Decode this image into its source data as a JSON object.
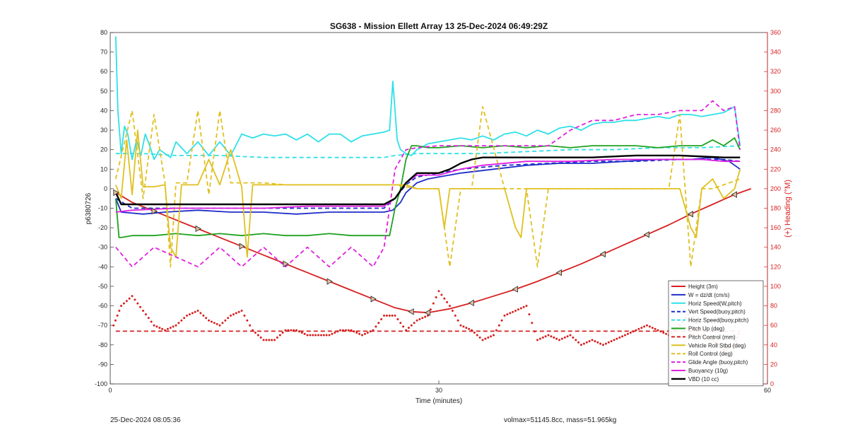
{
  "chart_data": {
    "type": "line",
    "title": "SG638 - Mission Ellett Array 13 25-Dec-2024 06:49:29Z",
    "xlabel": "Time (minutes)",
    "ylabel": "p6380726",
    "y2label": "(+) Heading (°M)",
    "xlim": [
      0,
      60
    ],
    "ylim": [
      -100,
      80
    ],
    "y2lim": [
      0,
      360
    ],
    "xticks": [
      "0",
      "30",
      "60"
    ],
    "yticks": [
      "80",
      "70",
      "60",
      "50",
      "40",
      "30",
      "20",
      "10",
      "0",
      "-10",
      "-20",
      "-30",
      "-40",
      "-50",
      "-60",
      "-70",
      "-80",
      "-90",
      "-100"
    ],
    "y2ticks": [
      "360",
      "340",
      "320",
      "300",
      "280",
      "260",
      "240",
      "220",
      "200",
      "180",
      "160",
      "140",
      "120",
      "100",
      "80",
      "60",
      "40",
      "20",
      "0"
    ],
    "grid": false,
    "legend_position": "lower-right",
    "series": [
      {
        "name": "Height (3m)",
        "color": "#d62020",
        "style": "solid",
        "x": [
          0.5,
          2,
          4,
          6,
          8,
          10,
          12,
          14,
          16,
          18,
          20,
          22,
          24,
          26,
          27.5,
          29,
          31,
          33,
          35,
          37,
          39,
          41,
          43,
          45,
          47,
          49,
          51,
          53,
          55,
          57,
          58.5
        ],
        "y": [
          -2,
          -7,
          -11.5,
          -16,
          -20.5,
          -25,
          -29.5,
          -34,
          -38.5,
          -43,
          -47.5,
          -52,
          -56.5,
          -61,
          -63,
          -63.5,
          -61.5,
          -58.5,
          -55,
          -51.5,
          -47.5,
          -43,
          -38.5,
          -33.5,
          -28.5,
          -23.5,
          -18.5,
          -13,
          -8,
          -3,
          0
        ]
      },
      {
        "name": "W = dz/dt (cm/s)",
        "color": "#1f2ec8",
        "style": "solid",
        "x": [
          0.5,
          1,
          3,
          5,
          8,
          11,
          14,
          17,
          20,
          23,
          25,
          25.8,
          26.5,
          27,
          28,
          29,
          30,
          32,
          35,
          38,
          41,
          44,
          47,
          50,
          53,
          55,
          56.5,
          57.5
        ],
        "y": [
          -5,
          -12,
          -13,
          -12,
          -11,
          -12,
          -12,
          -13,
          -12,
          -12,
          -12,
          -11,
          -7,
          -2,
          3,
          5,
          6,
          8,
          10,
          12,
          13,
          13,
          14,
          15,
          15,
          16,
          14,
          10
        ]
      },
      {
        "name": "Horiz Speed(W,pitch)",
        "color": "#2fe0e8",
        "style": "solid",
        "x": [
          0.5,
          0.7,
          1,
          1.3,
          1.6,
          2,
          2.4,
          2.8,
          3.2,
          3.6,
          4,
          4.5,
          5,
          5.5,
          6,
          7,
          8,
          9,
          10,
          11,
          12,
          13,
          14,
          15,
          16,
          17,
          18,
          19,
          20,
          21,
          22,
          23,
          24,
          25,
          25.5,
          25.8,
          26.2,
          26.5,
          27,
          27.5,
          28,
          29,
          30,
          31,
          32,
          33,
          34,
          35,
          36,
          37,
          38,
          39,
          40,
          41,
          42,
          43,
          44,
          45,
          46,
          47,
          48,
          49,
          50,
          51,
          52,
          53,
          54,
          55,
          56,
          57,
          57.5
        ],
        "y": [
          78,
          40,
          18,
          32,
          28,
          15,
          25,
          17,
          28,
          22,
          15,
          20,
          18,
          16,
          24,
          18,
          24,
          17,
          24,
          17,
          28,
          26,
          28,
          27,
          28,
          25,
          28,
          24,
          28,
          28,
          24,
          27,
          28,
          29,
          30,
          55,
          25,
          20,
          18,
          17,
          20,
          23,
          24,
          25,
          26,
          25,
          27,
          25,
          28,
          29,
          27,
          30,
          28,
          31,
          32,
          30,
          33,
          34,
          34,
          35,
          35,
          36,
          37,
          36,
          38,
          38,
          37,
          38,
          39,
          42,
          22
        ]
      },
      {
        "name": "Vert Speed(buoy,pitch)",
        "color": "#1f2ec8",
        "style": "dashed",
        "x": [
          0.5,
          2,
          6,
          10,
          14,
          18,
          22,
          25,
          26,
          27,
          28,
          30,
          32,
          34,
          36,
          40,
          44,
          48,
          52,
          56,
          57.5
        ],
        "y": [
          -5,
          -10,
          -10,
          -10,
          -10,
          -10,
          -10,
          -10,
          -5,
          2,
          6,
          8,
          10,
          11,
          12,
          13,
          14,
          14,
          15,
          15,
          14
        ]
      },
      {
        "name": "Horiz Speed(buoy,pitch)",
        "color": "#2fe0e8",
        "style": "dashed",
        "x": [
          0.5,
          3,
          6,
          10,
          14,
          18,
          22,
          25,
          26,
          28,
          30,
          34,
          38,
          42,
          46,
          50,
          54,
          57.5
        ],
        "y": [
          18,
          18,
          17,
          17,
          16,
          16,
          16,
          16,
          17,
          18,
          18,
          18,
          19,
          20,
          20,
          21,
          21,
          22
        ]
      },
      {
        "name": "Pitch Up (deg)",
        "color": "#1fa21f",
        "style": "solid",
        "x": [
          0.5,
          0.8,
          1,
          2,
          4,
          6,
          8,
          10,
          12,
          14,
          16,
          18,
          20,
          22,
          24,
          25.5,
          26,
          26.5,
          27,
          27.5,
          28,
          29,
          30,
          32,
          34,
          36,
          38,
          40,
          42,
          44,
          46,
          48,
          50,
          52,
          54,
          55,
          56,
          57,
          57.5
        ],
        "y": [
          -5,
          -25,
          -25,
          -24,
          -24,
          -23,
          -24,
          -23,
          -24,
          -23,
          -24,
          -24,
          -23,
          -24,
          -24,
          -24,
          -10,
          0,
          15,
          22,
          22,
          21,
          21,
          22,
          21,
          22,
          21,
          22,
          21,
          22,
          22,
          22,
          21,
          22,
          22,
          25,
          22,
          26,
          20
        ]
      },
      {
        "name": "Pitch Control (mm)",
        "color": "#d62020",
        "style": "dashed",
        "x": [
          0.5,
          57.5
        ],
        "y": [
          -73,
          -73
        ]
      },
      {
        "name": "Vehicle Roll Stbd (deg)",
        "color": "#e0c020",
        "style": "solid",
        "x": [
          0.5,
          1,
          1.5,
          2,
          2.5,
          3,
          4,
          5,
          5.5,
          6,
          6.5,
          7,
          8,
          9,
          10,
          11,
          12,
          12.5,
          13,
          14,
          15,
          16,
          17,
          18,
          19,
          19.5,
          20,
          21,
          22,
          23,
          24,
          25,
          26,
          27,
          28,
          29,
          30,
          30.5,
          31,
          32,
          33,
          34,
          35,
          36,
          37,
          37.5,
          38,
          39,
          40,
          41,
          42,
          43,
          44,
          45,
          46,
          47,
          48,
          49,
          50,
          51,
          52,
          53,
          53.5,
          54,
          55,
          56,
          57,
          57.5
        ],
        "y": [
          2,
          -5,
          25,
          -3,
          30,
          1,
          1,
          2,
          -30,
          -35,
          2,
          2,
          2,
          15,
          2,
          20,
          1,
          -35,
          2,
          2,
          2,
          2,
          2,
          2,
          2,
          2,
          2,
          2,
          2,
          2,
          2,
          2,
          2,
          2,
          0,
          0,
          0,
          -20,
          0,
          0,
          0,
          0,
          0,
          0,
          -20,
          -25,
          0,
          0,
          0,
          0,
          0,
          0,
          0,
          0,
          0,
          0,
          0,
          0,
          0,
          0,
          0,
          -20,
          -25,
          0,
          5,
          -5,
          0,
          10
        ]
      },
      {
        "name": "Roll Control (deg)",
        "color": "#e0c020",
        "style": "dashed",
        "x": [
          0.5,
          2,
          3,
          4,
          5,
          5.5,
          6,
          7,
          8,
          9,
          10,
          11,
          12,
          13,
          14,
          16,
          18,
          20,
          22,
          24,
          26,
          28,
          30,
          31,
          32,
          33,
          34,
          36,
          38,
          39,
          40,
          42,
          44,
          46,
          48,
          50,
          51,
          52,
          53,
          54,
          55,
          57.5
        ],
        "y": [
          5,
          40,
          -5,
          38,
          3,
          -40,
          3,
          3,
          40,
          -3,
          40,
          3,
          3,
          3,
          3,
          2,
          2,
          2,
          2,
          2,
          2,
          0,
          0,
          -40,
          0,
          0,
          42,
          0,
          0,
          -40,
          0,
          0,
          0,
          0,
          0,
          0,
          0,
          38,
          -40,
          0,
          0,
          5
        ]
      },
      {
        "name": "Glide Angle (buoy,pitch)",
        "color": "#e020e0",
        "style": "dashed",
        "x": [
          0.5,
          2,
          4,
          6,
          8,
          10,
          12,
          14,
          16,
          18,
          20,
          22,
          24,
          25,
          26,
          27,
          28,
          30,
          32,
          34,
          36,
          38,
          40,
          42,
          44,
          46,
          48,
          50,
          52,
          54,
          55,
          56,
          57,
          57.5
        ],
        "y": [
          -30,
          -40,
          -30,
          -35,
          -40,
          -30,
          -40,
          -30,
          -40,
          -30,
          -40,
          -30,
          -40,
          -30,
          10,
          20,
          21,
          22,
          22,
          22,
          22,
          22,
          22,
          30,
          35,
          35,
          38,
          38,
          40,
          40,
          45,
          40,
          42,
          20
        ]
      },
      {
        "name": "Buoyancy (10g)",
        "color": "#e020e0",
        "style": "solid",
        "x": [
          0.5,
          2,
          6,
          10,
          14,
          18,
          22,
          25,
          26,
          27,
          28,
          30,
          32,
          34,
          38,
          42,
          46,
          50,
          54,
          56,
          57.5
        ],
        "y": [
          -12,
          -11,
          -10,
          -10,
          -10,
          -9,
          -9,
          -9,
          -5,
          3,
          7,
          7,
          10,
          12,
          14,
          14,
          15,
          15,
          15,
          14,
          14
        ]
      },
      {
        "name": "VBD (10 cc)",
        "color": "#000000",
        "style": "solid",
        "x": [
          0.5,
          1,
          3,
          6,
          10,
          14,
          18,
          22,
          25,
          26,
          27,
          28,
          29,
          30,
          31,
          32,
          33,
          34,
          36,
          38,
          40,
          44,
          48,
          52,
          56,
          57.5
        ],
        "y": [
          -2,
          -8,
          -8,
          -8,
          -8,
          -8,
          -8,
          -8,
          -8,
          -5,
          3,
          8,
          8,
          8,
          10,
          13,
          15,
          16,
          16,
          16,
          16,
          16,
          17,
          17,
          16,
          16
        ]
      }
    ],
    "heading_series": {
      "name": "Heading (deg)",
      "axis": "right",
      "color": "#d62020",
      "marker": "dot",
      "x": [
        0.3,
        1,
        2,
        3,
        4,
        5,
        6,
        7,
        8,
        9,
        10,
        11,
        12,
        13,
        14,
        15,
        16,
        17,
        18,
        19,
        20,
        21,
        22,
        23,
        24,
        25,
        26,
        27,
        28,
        29,
        30,
        31,
        32,
        33,
        34,
        35,
        36,
        37,
        38,
        39,
        40,
        41,
        42,
        43,
        44,
        45,
        46,
        47,
        48,
        49,
        50,
        51,
        52,
        53,
        54,
        55,
        56,
        57,
        57.5
      ],
      "y": [
        60,
        80,
        90,
        75,
        60,
        55,
        60,
        70,
        75,
        65,
        60,
        70,
        75,
        55,
        45,
        45,
        55,
        55,
        50,
        50,
        50,
        55,
        55,
        50,
        55,
        70,
        70,
        55,
        65,
        70,
        95,
        80,
        60,
        55,
        45,
        50,
        70,
        75,
        80,
        45,
        50,
        45,
        50,
        40,
        45,
        40,
        45,
        50,
        55,
        60,
        55,
        50,
        60,
        75,
        50,
        45,
        35,
        40,
        55
      ]
    }
  },
  "footer": {
    "left": "25-Dec-2024 08:05:36",
    "right": "volmax=51145.8cc, mass=51.965kg"
  }
}
